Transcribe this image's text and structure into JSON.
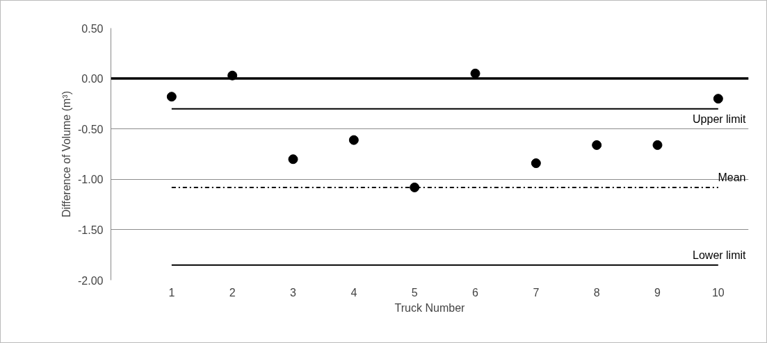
{
  "chart_data": {
    "type": "scatter",
    "xlabel": "Truck Number",
    "ylabel": "Difference of Volume (m³)",
    "categories": [
      "1",
      "2",
      "3",
      "4",
      "5",
      "6",
      "7",
      "8",
      "9",
      "10"
    ],
    "series": [
      {
        "color": "#000000",
        "values": [
          -0.18,
          0.03,
          -0.8,
          -0.61,
          -1.08,
          0.05,
          -0.84,
          -0.66,
          -0.66,
          -0.2
        ]
      }
    ],
    "ylim": [
      -2.0,
      0.5
    ],
    "yticks": [
      {
        "value": -2.0,
        "label": "-2.00"
      },
      {
        "value": -1.5,
        "label": "-1.50"
      },
      {
        "value": -1.0,
        "label": "-1.00"
      },
      {
        "value": -0.5,
        "label": "-0.50"
      },
      {
        "value": 0.0,
        "label": "0.00"
      },
      {
        "value": 0.5,
        "label": "0.50"
      }
    ],
    "ref_lines": [
      {
        "axis": "y",
        "value": 0.0,
        "label": null,
        "color": "#000000",
        "line_style": "solid"
      },
      {
        "axis": "y",
        "value": -0.3,
        "label": "Upper limit",
        "color": "#000000",
        "line_style": "solid"
      },
      {
        "axis": "y",
        "value": -1.08,
        "label": "Mean",
        "color": "#000000",
        "line_style": "dashdot"
      },
      {
        "axis": "y",
        "value": -1.85,
        "label": "Lower limit",
        "color": "#000000",
        "line_style": "solid"
      }
    ],
    "grid": "y",
    "marker": "circle"
  }
}
